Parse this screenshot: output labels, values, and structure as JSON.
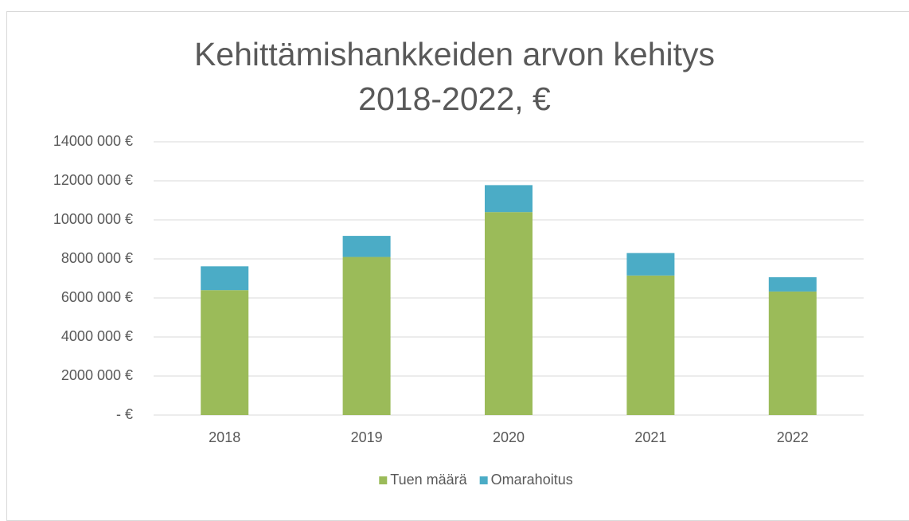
{
  "chart_data": {
    "type": "stacked_bar",
    "title": "Kehittämishankkeiden arvon kehitys 2018-2022, €",
    "categories": [
      "2018",
      "2019",
      "2020",
      "2021",
      "2022"
    ],
    "series": [
      {
        "name": "Tuen määrä",
        "color": "#9bbb59",
        "values": [
          6400000,
          8100000,
          10400000,
          7150000,
          6330000
        ]
      },
      {
        "name": "Omarahoitus",
        "color": "#4bacc6",
        "values": [
          1220000,
          1080000,
          1380000,
          1150000,
          730000
        ]
      }
    ],
    "ylim": [
      0,
      14000000
    ],
    "yticks": [
      {
        "value": 0,
        "label": "-   €"
      },
      {
        "value": 2000000,
        "label": "2000 000 €"
      },
      {
        "value": 4000000,
        "label": "4000 000 €"
      },
      {
        "value": 6000000,
        "label": "6000 000 €"
      },
      {
        "value": 8000000,
        "label": "8000 000 €"
      },
      {
        "value": 10000000,
        "label": "10000 000 €"
      },
      {
        "value": 12000000,
        "label": "12000 000 €"
      },
      {
        "value": 14000000,
        "label": "14000 000 €"
      }
    ],
    "grid": true,
    "legend": "bottom"
  }
}
